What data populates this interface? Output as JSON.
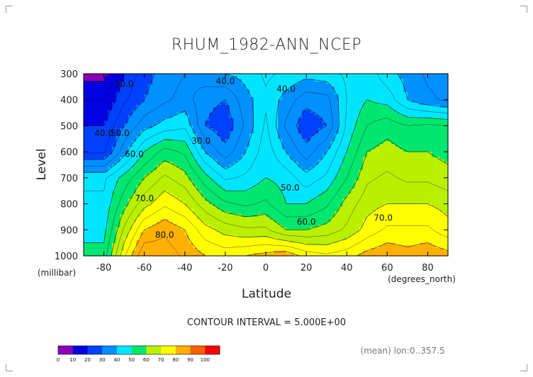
{
  "chart_data": {
    "type": "contour",
    "title": "RHUM_1982-ANN_NCEP",
    "xlabel": "Latitude",
    "xunit": "(degrees_north)",
    "ylabel": "Level",
    "yunit": "(millibar)",
    "xlim": [
      -90,
      90
    ],
    "ylim": [
      1000,
      300
    ],
    "xticks": [
      -80,
      -60,
      -40,
      -20,
      0,
      20,
      40,
      60,
      80
    ],
    "yticks": [
      300,
      400,
      500,
      600,
      700,
      800,
      900,
      1000
    ],
    "x": [
      -80,
      -70,
      -60,
      -50,
      -40,
      -30,
      -20,
      -10,
      0,
      10,
      20,
      30,
      40,
      50,
      60,
      70,
      80,
      90
    ],
    "levels": [
      300,
      400,
      500,
      600,
      700,
      800,
      900,
      1000
    ],
    "z": [
      [
        8,
        20,
        28,
        32,
        35,
        38,
        40,
        42,
        46,
        44,
        42,
        43,
        46,
        48,
        42,
        38,
        34,
        33
      ],
      [
        15,
        24,
        30,
        34,
        37,
        32,
        30,
        38,
        44,
        38,
        32,
        33,
        45,
        50,
        48,
        40,
        36,
        34
      ],
      [
        20,
        30,
        38,
        42,
        44,
        30,
        26,
        36,
        46,
        34,
        26,
        30,
        46,
        55,
        58,
        55,
        56,
        55
      ],
      [
        24,
        38,
        50,
        57,
        54,
        40,
        32,
        40,
        48,
        40,
        32,
        40,
        50,
        60,
        62,
        60,
        60,
        58
      ],
      [
        44,
        52,
        60,
        66,
        62,
        52,
        44,
        46,
        50,
        48,
        42,
        46,
        55,
        64,
        66,
        64,
        64,
        62
      ],
      [
        46,
        58,
        68,
        74,
        70,
        62,
        56,
        54,
        56,
        50,
        50,
        54,
        62,
        68,
        70,
        70,
        70,
        68
      ],
      [
        48,
        66,
        80,
        84,
        80,
        72,
        68,
        66,
        66,
        60,
        60,
        62,
        66,
        72,
        76,
        76,
        76,
        72
      ],
      [
        52,
        74,
        90,
        88,
        84,
        80,
        78,
        80,
        82,
        84,
        78,
        76,
        78,
        82,
        84,
        82,
        84,
        82
      ]
    ],
    "contour_labels": [
      {
        "text": "30.0",
        "x": -70,
        "y": 350
      },
      {
        "text": "40.0",
        "x": -20,
        "y": 340
      },
      {
        "text": "40.0",
        "x": 10,
        "y": 370
      },
      {
        "text": "40.0",
        "x": -80,
        "y": 540
      },
      {
        "text": "50.0",
        "x": -72,
        "y": 540
      },
      {
        "text": "30.0",
        "x": -32,
        "y": 570
      },
      {
        "text": "60.0",
        "x": -65,
        "y": 620
      },
      {
        "text": "50.0",
        "x": 12,
        "y": 750
      },
      {
        "text": "70.0",
        "x": -60,
        "y": 790
      },
      {
        "text": "60.0",
        "x": 20,
        "y": 880
      },
      {
        "text": "70.0",
        "x": 58,
        "y": 865
      },
      {
        "text": "80.0",
        "x": -50,
        "y": 930
      }
    ],
    "colorbar": {
      "ticks": [
        "0",
        "10",
        "20",
        "30",
        "40",
        "50",
        "60",
        "70",
        "80",
        "90",
        "100"
      ],
      "colors": [
        "#8a00b8",
        "#0000e0",
        "#0040ff",
        "#0090ff",
        "#00e5ff",
        "#00e66e",
        "#b8f000",
        "#ffff00",
        "#ffb000",
        "#ff6000",
        "#ff0000"
      ]
    },
    "footer": "CONTOUR INTERVAL = 5.000E+00",
    "mean_label": "(mean) lon:0..357.5"
  }
}
